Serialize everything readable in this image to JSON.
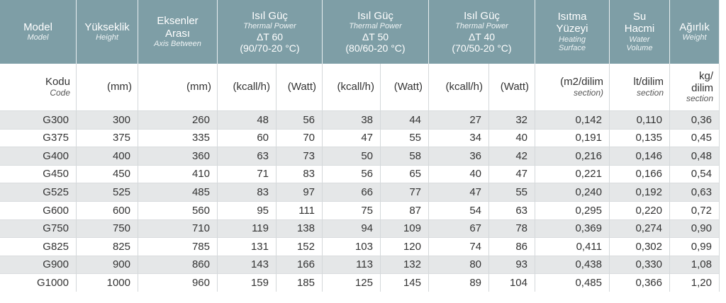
{
  "header": [
    {
      "lines": [
        "Model"
      ],
      "subtitle": [
        "Model"
      ]
    },
    {
      "lines": [
        "Yükseklik"
      ],
      "subtitle": [
        "Height"
      ]
    },
    {
      "lines": [
        "Eksenler",
        "Arası"
      ],
      "subtitle": [
        "Axis Between"
      ]
    },
    {
      "lines": [
        "Isıl Güç"
      ],
      "subtitle": [
        "Thermal Power"
      ],
      "extra": [
        "ΔT 60",
        "(90/70-20 °C)"
      ]
    },
    {
      "lines": [
        "Isıl Güç"
      ],
      "subtitle": [
        "Thermal Power"
      ],
      "extra": [
        "ΔT 50",
        "(80/60-20 °C)"
      ]
    },
    {
      "lines": [
        "Isıl Güç"
      ],
      "subtitle": [
        "Thermal Power"
      ],
      "extra": [
        "ΔT 40",
        "(70/50-20 °C)"
      ]
    },
    {
      "lines": [
        "Isıtma",
        "Yüzeyi"
      ],
      "subtitle": [
        "Heating",
        "Surface"
      ]
    },
    {
      "lines": [
        "Su",
        "Hacmi"
      ],
      "subtitle": [
        "Water",
        "Volume"
      ]
    },
    {
      "lines": [
        "Ağırlık"
      ],
      "subtitle": [
        "Weight"
      ]
    }
  ],
  "units": [
    {
      "lines": [
        "Kodu"
      ],
      "subtitle": [
        "Code"
      ]
    },
    {
      "lines": [
        "(mm)"
      ]
    },
    {
      "lines": [
        "(mm)"
      ]
    },
    {
      "lines": [
        "(kcall/h)"
      ]
    },
    {
      "lines": [
        "(Watt)"
      ]
    },
    {
      "lines": [
        "(kcall/h)"
      ]
    },
    {
      "lines": [
        "(Watt)"
      ]
    },
    {
      "lines": [
        "(kcall/h)"
      ]
    },
    {
      "lines": [
        "(Watt)"
      ]
    },
    {
      "lines": [
        "(m2/dilim"
      ],
      "subtitle": [
        "section)"
      ]
    },
    {
      "lines": [
        "lt/dilim"
      ],
      "subtitle": [
        "section"
      ]
    },
    {
      "lines": [
        "kg/",
        "dilim"
      ],
      "subtitle": [
        "section"
      ]
    }
  ],
  "table": {
    "rows": [
      [
        "G300",
        "300",
        "260",
        "48",
        "56",
        "38",
        "44",
        "27",
        "32",
        "0,142",
        "0,110",
        "0,36"
      ],
      [
        "G375",
        "375",
        "335",
        "60",
        "70",
        "47",
        "55",
        "34",
        "40",
        "0,191",
        "0,135",
        "0,45"
      ],
      [
        "G400",
        "400",
        "360",
        "63",
        "73",
        "50",
        "58",
        "36",
        "42",
        "0,216",
        "0,146",
        "0,48"
      ],
      [
        "G450",
        "450",
        "410",
        "71",
        "83",
        "56",
        "65",
        "40",
        "47",
        "0,221",
        "0,166",
        "0,54"
      ],
      [
        "G525",
        "525",
        "485",
        "83",
        "97",
        "66",
        "77",
        "47",
        "55",
        "0,240",
        "0,192",
        "0,63"
      ],
      [
        "G600",
        "600",
        "560",
        "95",
        "111",
        "75",
        "87",
        "54",
        "63",
        "0,295",
        "0,220",
        "0,72"
      ],
      [
        "G750",
        "750",
        "710",
        "119",
        "138",
        "94",
        "109",
        "67",
        "78",
        "0,369",
        "0,274",
        "0,90"
      ],
      [
        "G825",
        "825",
        "785",
        "131",
        "152",
        "103",
        "120",
        "74",
        "86",
        "0,411",
        "0,302",
        "0,99"
      ],
      [
        "G900",
        "900",
        "860",
        "143",
        "166",
        "113",
        "132",
        "80",
        "93",
        "0,438",
        "0,330",
        "1,08"
      ],
      [
        "G1000",
        "1000",
        "960",
        "159",
        "185",
        "125",
        "145",
        "89",
        "104",
        "0,485",
        "0,366",
        "1,20"
      ]
    ]
  }
}
